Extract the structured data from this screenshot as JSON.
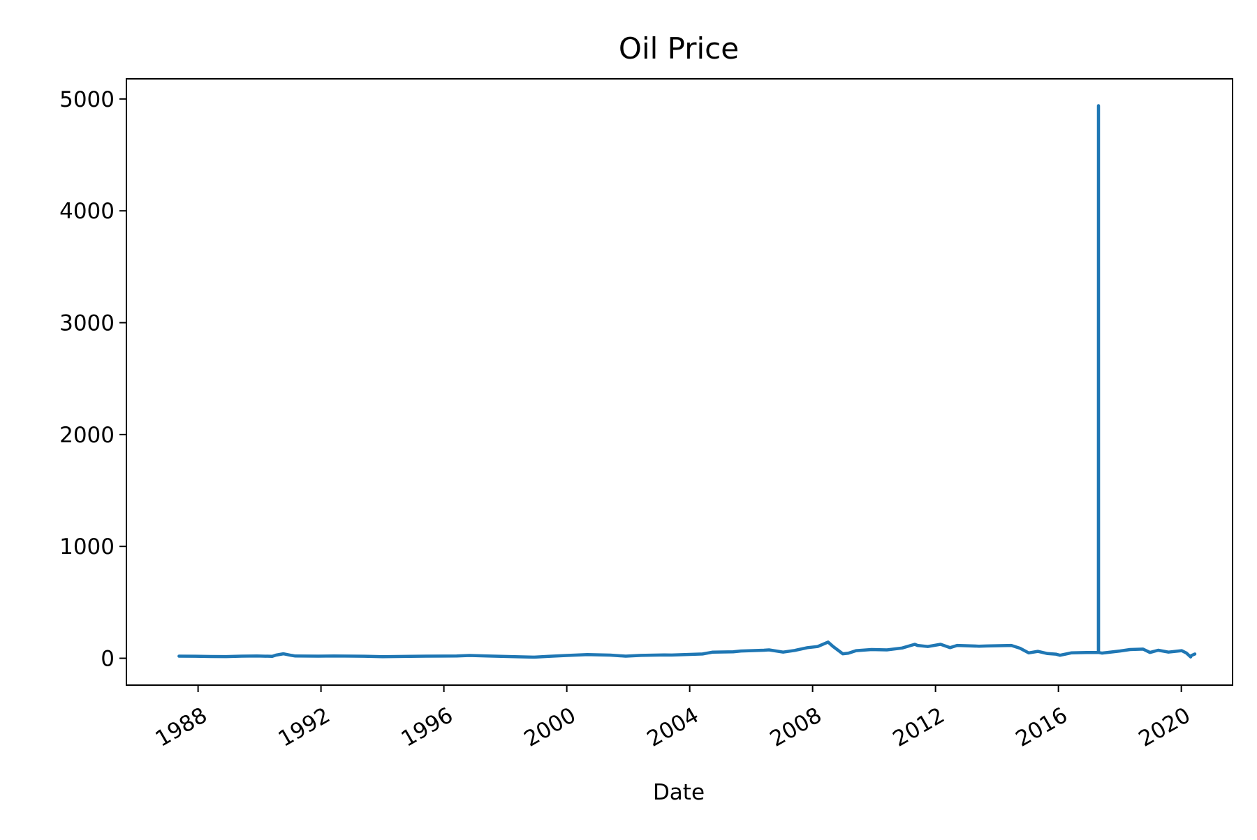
{
  "chart_data": {
    "type": "line",
    "title": "Oil Price",
    "xlabel": "Date",
    "ylabel": "",
    "xlim": [
      "1985-09-01",
      "2021-09-01"
    ],
    "ylim": [
      -240,
      5180
    ],
    "x_ticks": [
      "1988",
      "1992",
      "1996",
      "2000",
      "2004",
      "2008",
      "2012",
      "2016",
      "2020"
    ],
    "y_ticks": [
      0,
      1000,
      2000,
      3000,
      4000,
      5000
    ],
    "grid": false,
    "legend": "none",
    "line_color": "#1f77b4",
    "series": [
      {
        "x": [
          "1987-05-20",
          "1987-12-01",
          "1988-06-01",
          "1988-12-01",
          "1989-06-01",
          "1989-12-01",
          "1990-06-01",
          "1990-07-15",
          "1990-10-10",
          "1991-01-15",
          "1991-03-01",
          "1991-12-01",
          "1992-06-01",
          "1993-06-01",
          "1994-01-01",
          "1994-12-01",
          "1995-06-01",
          "1996-06-01",
          "1996-11-01",
          "1997-06-01",
          "1998-06-01",
          "1998-12-15",
          "1999-06-01",
          "2000-01-01",
          "2000-09-01",
          "2001-06-01",
          "2001-12-01",
          "2002-06-01",
          "2003-03-01",
          "2003-06-01",
          "2004-06-01",
          "2004-10-01",
          "2005-06-01",
          "2005-09-01",
          "2006-06-01",
          "2006-08-01",
          "2007-01-15",
          "2007-06-01",
          "2007-11-01",
          "2008-03-01",
          "2008-07-03",
          "2008-09-01",
          "2008-12-24",
          "2009-03-01",
          "2009-06-01",
          "2009-12-01",
          "2010-06-01",
          "2010-12-01",
          "2011-04-29",
          "2011-06-01",
          "2011-10-01",
          "2012-03-01",
          "2012-06-21",
          "2012-09-14",
          "2013-06-01",
          "2013-09-01",
          "2014-06-20",
          "2014-10-01",
          "2015-01-13",
          "2015-05-01",
          "2015-08-24",
          "2015-12-01",
          "2016-01-20",
          "2016-06-01",
          "2016-12-01",
          "2017-04-01",
          "2017-04-20",
          "2017-04-21",
          "2017-04-22",
          "2017-06-01",
          "2018-01-01",
          "2018-05-01",
          "2018-10-03",
          "2018-12-24",
          "2019-04-01",
          "2019-08-01",
          "2020-01-06",
          "2020-03-01",
          "2020-04-21",
          "2020-05-01",
          "2020-06-10"
        ],
        "y": [
          19,
          18,
          16,
          15,
          19,
          21,
          17,
          28,
          40,
          26,
          20,
          19,
          21,
          18,
          14,
          17,
          19,
          21,
          25,
          20,
          13,
          10,
          17,
          25,
          33,
          28,
          19,
          26,
          30,
          29,
          38,
          55,
          58,
          65,
          72,
          75,
          55,
          70,
          95,
          105,
          145,
          105,
          40,
          45,
          68,
          78,
          75,
          92,
          125,
          115,
          105,
          125,
          95,
          115,
          108,
          110,
          115,
          90,
          48,
          62,
          42,
          37,
          27,
          48,
          52,
          52,
          52,
          4940,
          52,
          46,
          65,
          78,
          82,
          52,
          72,
          55,
          68,
          47,
          12,
          25,
          38
        ]
      }
    ]
  }
}
